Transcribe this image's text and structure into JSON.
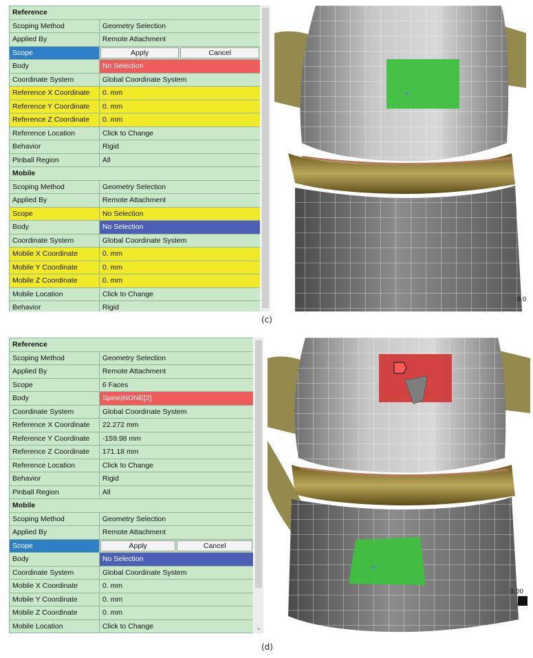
{
  "panel_c": {
    "caption": "(c)",
    "reference": {
      "header": "Reference",
      "rows": {
        "scoping_method": {
          "label": "Scoping Method",
          "value": "Geometry Selection"
        },
        "applied_by": {
          "label": "Applied By",
          "value": "Remote Attachment"
        },
        "scope": {
          "label": "Scope",
          "apply": "Apply",
          "cancel": "Cancel"
        },
        "body": {
          "label": "Body",
          "value": "No Selection"
        },
        "coord_system": {
          "label": "Coordinate System",
          "value": "Global Coordinate System"
        },
        "ref_x": {
          "label": "Reference X Coordinate",
          "value": "0. mm"
        },
        "ref_y": {
          "label": "Reference Y Coordinate",
          "value": "0. mm"
        },
        "ref_z": {
          "label": "Reference Z Coordinate",
          "value": "0. mm"
        },
        "ref_location": {
          "label": "Reference Location",
          "value": "Click to Change"
        },
        "behavior": {
          "label": "Behavior",
          "value": "Rigid"
        },
        "pinball": {
          "label": "Pinball Region",
          "value": "All"
        }
      }
    },
    "mobile": {
      "header": "Mobile",
      "rows": {
        "scoping_method": {
          "label": "Scoping Method",
          "value": "Geometry Selection"
        },
        "applied_by": {
          "label": "Applied By",
          "value": "Remote Attachment"
        },
        "scope": {
          "label": "Scope",
          "value": "No Selection"
        },
        "body": {
          "label": "Body",
          "value": "No Selection"
        },
        "coord_system": {
          "label": "Coordinate System",
          "value": "Global Coordinate System"
        },
        "mob_x": {
          "label": "Mobile X Coordinate",
          "value": "0. mm"
        },
        "mob_y": {
          "label": "Mobile Y Coordinate",
          "value": "0. mm"
        },
        "mob_z": {
          "label": "Mobile Z Coordinate",
          "value": "0. mm"
        },
        "mob_location": {
          "label": "Mobile Location",
          "value": "Click to Change"
        },
        "behavior": {
          "label": "Behavior",
          "value": "Rigid"
        }
      }
    },
    "viewport_label": "0.0"
  },
  "panel_d": {
    "caption": "(d)",
    "reference": {
      "header": "Reference",
      "rows": {
        "scoping_method": {
          "label": "Scoping Method",
          "value": "Geometry Selection"
        },
        "applied_by": {
          "label": "Applied By",
          "value": "Remote Attachment"
        },
        "scope": {
          "label": "Scope",
          "value": "6 Faces"
        },
        "body": {
          "label": "Body",
          "value": "Spine|NONE[2]"
        },
        "coord_system": {
          "label": "Coordinate System",
          "value": "Global Coordinate System"
        },
        "ref_x": {
          "label": "Reference X Coordinate",
          "value": "22.272 mm"
        },
        "ref_y": {
          "label": "Reference Y Coordinate",
          "value": "-159.98 mm"
        },
        "ref_z": {
          "label": "Reference Z Coordinate",
          "value": "171.18 mm"
        },
        "ref_location": {
          "label": "Reference Location",
          "value": "Click to Change"
        },
        "behavior": {
          "label": "Behavior",
          "value": "Rigid"
        },
        "pinball": {
          "label": "Pinball Region",
          "value": "All"
        }
      }
    },
    "mobile": {
      "header": "Mobile",
      "rows": {
        "scoping_method": {
          "label": "Scoping Method",
          "value": "Geometry Selection"
        },
        "applied_by": {
          "label": "Applied By",
          "value": "Remote Attachment"
        },
        "scope": {
          "label": "Scope",
          "apply": "Apply",
          "cancel": "Cancel"
        },
        "body": {
          "label": "Body",
          "value": "No Selection"
        },
        "coord_system": {
          "label": "Coordinate System",
          "value": "Global Coordinate System"
        },
        "mob_x": {
          "label": "Mobile X Coordinate",
          "value": "0. mm"
        },
        "mob_y": {
          "label": "Mobile Y Coordinate",
          "value": "0. mm"
        },
        "mob_z": {
          "label": "Mobile Z Coordinate",
          "value": "0. mm"
        },
        "mob_location": {
          "label": "Mobile Location",
          "value": "Click to Change"
        }
      }
    },
    "viewport_label": "0.00"
  },
  "colors": {
    "panel_green": "#c9e7c9",
    "highlight_blue": "#2f7fc6",
    "error_red": "#ef5b5b",
    "field_yellow": "#f1ea29",
    "selection_blue": "#4c5fb5",
    "face_green": "#3fbf3f",
    "face_red": "#d23a3a"
  }
}
